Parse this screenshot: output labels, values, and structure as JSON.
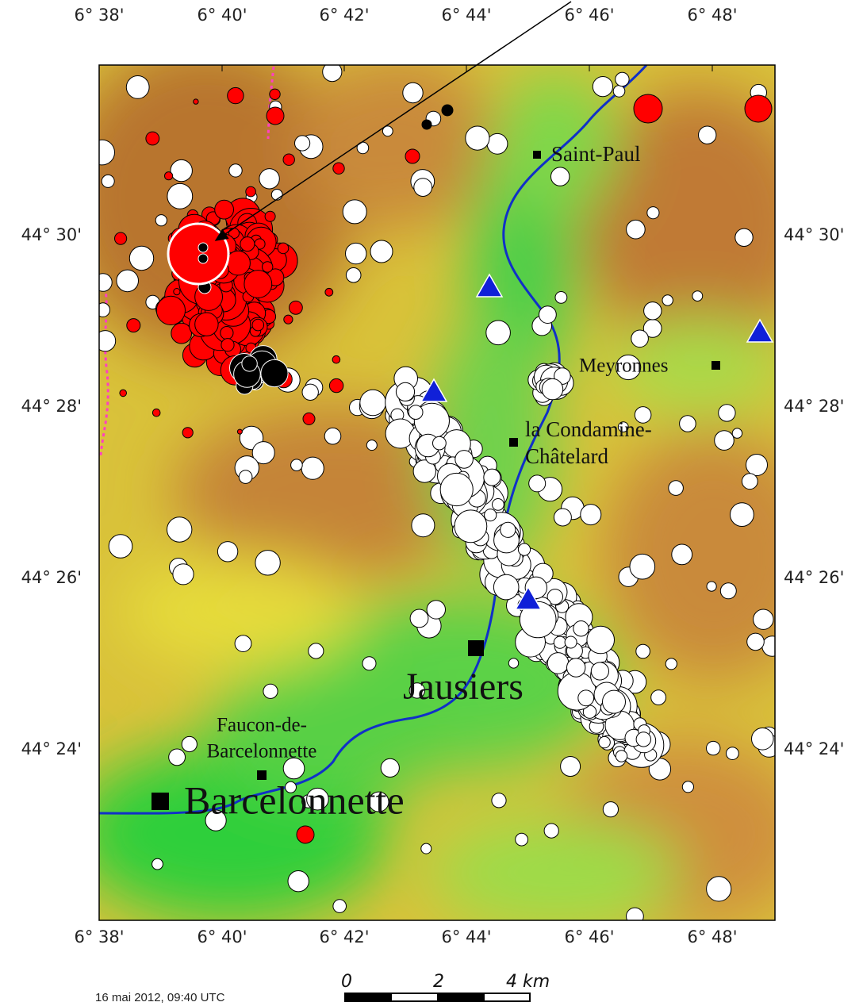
{
  "map": {
    "lon_ticks": [
      "6° 38'",
      "6° 40'",
      "6° 42'",
      "6° 44'",
      "6° 46'",
      "6° 48'"
    ],
    "lat_ticks": [
      "44° 30'",
      "44° 28'",
      "44° 26'",
      "44° 24'"
    ],
    "places": {
      "saint_paul": "Saint-Paul",
      "meyronnes": "Meyronnes",
      "condamine": [
        "la Condamine-",
        "Châtelard"
      ],
      "jausiers": "Jausiers",
      "faucon": [
        "Faucon-de-",
        "Barcelonnette"
      ],
      "barcelonnette": "Barcelonnette"
    },
    "scale_labels": [
      "0",
      "2",
      "4 km"
    ],
    "date": "16 mai 2012, 09:40 UTC"
  }
}
